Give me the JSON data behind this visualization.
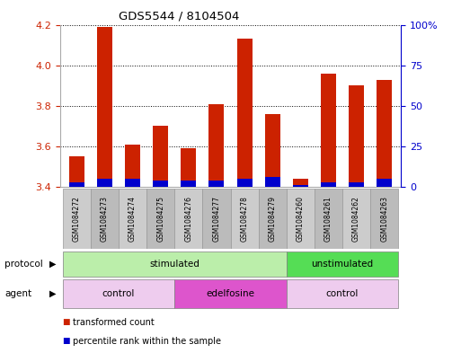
{
  "title": "GDS5544 / 8104504",
  "samples": [
    "GSM1084272",
    "GSM1084273",
    "GSM1084274",
    "GSM1084275",
    "GSM1084276",
    "GSM1084277",
    "GSM1084278",
    "GSM1084279",
    "GSM1084260",
    "GSM1084261",
    "GSM1084262",
    "GSM1084263"
  ],
  "transformed_count": [
    3.55,
    4.19,
    3.61,
    3.7,
    3.59,
    3.81,
    4.13,
    3.76,
    3.44,
    3.96,
    3.9,
    3.93
  ],
  "percentile_rank": [
    3,
    5,
    5,
    4,
    4,
    4,
    5,
    6,
    1,
    3,
    3,
    5
  ],
  "ylim_left": [
    3.4,
    4.2
  ],
  "ylim_right": [
    0,
    100
  ],
  "yticks_left": [
    3.4,
    3.6,
    3.8,
    4.0,
    4.2
  ],
  "yticks_right": [
    0,
    25,
    50,
    75,
    100
  ],
  "ytick_labels_right": [
    "0",
    "25",
    "50",
    "75",
    "100%"
  ],
  "bar_color_red": "#cc2200",
  "bar_color_blue": "#0000cc",
  "bar_width": 0.55,
  "protocol_groups": [
    {
      "label": "stimulated",
      "start": 0,
      "end": 7,
      "color": "#bbeeaa"
    },
    {
      "label": "unstimulated",
      "start": 8,
      "end": 11,
      "color": "#55dd55"
    }
  ],
  "agent_groups": [
    {
      "label": "control",
      "start": 0,
      "end": 3,
      "color": "#eeccee"
    },
    {
      "label": "edelfosine",
      "start": 4,
      "end": 7,
      "color": "#dd55cc"
    },
    {
      "label": "control",
      "start": 8,
      "end": 11,
      "color": "#eeccee"
    }
  ],
  "legend_items": [
    {
      "label": "transformed count",
      "color": "#cc2200"
    },
    {
      "label": "percentile rank within the sample",
      "color": "#0000cc"
    }
  ],
  "bg_color": "#ffffff",
  "tick_label_color_left": "#cc2200",
  "tick_label_color_right": "#0000cc",
  "protocol_label": "protocol",
  "agent_label": "agent",
  "sample_box_color_odd": "#cccccc",
  "sample_box_color_even": "#bbbbbb",
  "sample_box_edge": "#999999"
}
